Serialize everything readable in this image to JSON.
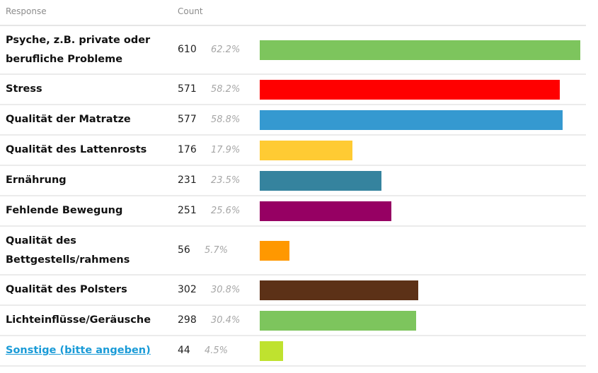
{
  "header": {
    "response": "Response",
    "count": "Count"
  },
  "chart_data": {
    "type": "bar",
    "orientation": "horizontal",
    "xlabel": "Response",
    "ylabel": "Count",
    "categories": [
      "Psyche, z.B. private oder berufliche Probleme",
      "Stress",
      "Qualität der Matratze",
      "Qualität des Lattenrosts",
      "Ernährung",
      "Fehlende Bewegung",
      "Qualität des Bettgestells/rahmens",
      "Qualität des Polsters",
      "Lichteinflüsse/Geräusche",
      "Sonstige (bitte angeben)"
    ],
    "values": [
      610,
      571,
      577,
      176,
      231,
      251,
      56,
      302,
      298,
      44
    ],
    "percents": [
      "62.2%",
      "58.2%",
      "58.8%",
      "17.9%",
      "23.5%",
      "25.6%",
      "5.7%",
      "30.8%",
      "30.4%",
      "4.5%"
    ],
    "colors": [
      "#7dc55d",
      "#ff0000",
      "#3599d0",
      "#ffcb33",
      "#35839e",
      "#960063",
      "#ff9800",
      "#5c3117",
      "#7dc55d",
      "#bfe22f"
    ],
    "linked": [
      false,
      false,
      false,
      false,
      false,
      false,
      false,
      false,
      false,
      true
    ]
  }
}
